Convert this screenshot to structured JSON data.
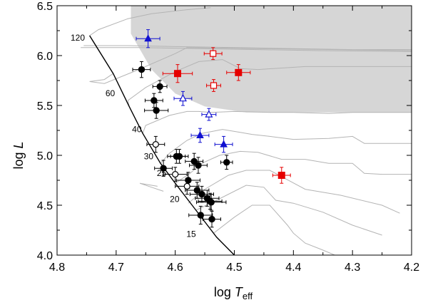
{
  "chart_data": {
    "type": "scatter",
    "title": "",
    "xlabel": {
      "main": "log ",
      "italic": "T",
      "sub": "eff"
    },
    "ylabel": {
      "main": "log ",
      "italic": "L"
    },
    "xlim": [
      4.8,
      4.2
    ],
    "ylim": [
      4.0,
      6.5
    ],
    "x_ticks": [
      4.8,
      4.7,
      4.6,
      4.5,
      4.4,
      4.3,
      4.2
    ],
    "x_tick_labels": [
      "4.8",
      "4.7",
      "4.6",
      "4.5",
      "4.4",
      "4.3",
      "4.2"
    ],
    "y_ticks": [
      4.0,
      4.5,
      5.0,
      5.5,
      6.0,
      6.5
    ],
    "y_tick_labels": [
      "4.0",
      "4.5",
      "5.0",
      "5.5",
      "6.0",
      "6.5"
    ],
    "grid": false,
    "colors": {
      "black": "#000000",
      "red": "#e60000",
      "blue": "#1010d0",
      "shade": "#d6d6d6",
      "tracks": "#b4b4b4"
    },
    "shaded_region": [
      [
        4.675,
        6.5
      ],
      [
        4.2,
        6.5
      ],
      [
        4.2,
        5.43
      ],
      [
        4.48,
        5.43
      ],
      [
        4.55,
        5.49
      ],
      [
        4.6,
        5.62
      ],
      [
        4.64,
        5.86
      ],
      [
        4.675,
        6.22
      ]
    ],
    "zams_line": [
      [
        4.745,
        6.2
      ],
      [
        4.705,
        5.82
      ],
      [
        4.678,
        5.49
      ],
      [
        4.655,
        5.22
      ],
      [
        4.625,
        4.92
      ],
      [
        4.6,
        4.72
      ],
      [
        4.565,
        4.45
      ],
      [
        4.53,
        4.18
      ],
      [
        4.5,
        4.0
      ]
    ],
    "mass_labels": [
      {
        "text": "120",
        "x": 4.765,
        "y": 6.18
      },
      {
        "text": "60",
        "x": 4.71,
        "y": 5.62
      },
      {
        "text": "40",
        "x": 4.665,
        "y": 5.26
      },
      {
        "text": "30",
        "x": 4.645,
        "y": 4.99
      },
      {
        "text": "25",
        "x": 4.623,
        "y": 4.82
      },
      {
        "text": "20",
        "x": 4.601,
        "y": 4.56
      },
      {
        "text": "15",
        "x": 4.573,
        "y": 4.21
      }
    ],
    "tracks": [
      [
        [
          4.745,
          6.2
        ],
        [
          4.73,
          6.26
        ],
        [
          4.68,
          6.37
        ],
        [
          4.64,
          6.42
        ],
        [
          4.58,
          6.46
        ],
        [
          4.54,
          6.48
        ]
      ],
      [
        [
          4.755,
          6.1
        ],
        [
          4.68,
          6.1
        ],
        [
          4.6,
          6.09
        ],
        [
          4.5,
          6.08
        ],
        [
          4.4,
          6.07
        ],
        [
          4.3,
          6.06
        ],
        [
          4.2,
          6.06
        ]
      ],
      [
        [
          4.76,
          6.08
        ],
        [
          4.66,
          6.08
        ],
        [
          4.56,
          6.07
        ],
        [
          4.46,
          6.06
        ],
        [
          4.36,
          6.05
        ],
        [
          4.2,
          6.04
        ]
      ],
      [
        [
          4.705,
          5.82
        ],
        [
          4.72,
          5.76
        ],
        [
          4.745,
          5.74
        ],
        [
          4.72,
          5.72
        ],
        [
          4.67,
          5.84
        ],
        [
          4.6,
          6.02
        ],
        [
          4.58,
          6.08
        ],
        [
          4.45,
          6.07
        ],
        [
          4.2,
          6.05
        ]
      ],
      [
        [
          4.678,
          5.49
        ],
        [
          4.68,
          5.55
        ],
        [
          4.65,
          5.68
        ],
        [
          4.6,
          5.84
        ],
        [
          4.56,
          5.94
        ],
        [
          4.52,
          5.96
        ],
        [
          4.5,
          5.9
        ],
        [
          4.49,
          5.87
        ],
        [
          4.46,
          5.86
        ],
        [
          4.38,
          5.89
        ],
        [
          4.2,
          5.89
        ]
      ],
      [
        [
          4.655,
          5.22
        ],
        [
          4.65,
          5.3
        ],
        [
          4.61,
          5.4
        ],
        [
          4.58,
          5.44
        ],
        [
          4.56,
          5.44
        ],
        [
          4.54,
          5.43
        ],
        [
          4.5,
          5.44
        ],
        [
          4.44,
          5.43
        ],
        [
          4.4,
          5.43
        ],
        [
          4.34,
          5.42
        ],
        [
          4.3,
          5.43
        ],
        [
          4.2,
          5.43
        ]
      ],
      [
        [
          4.625,
          4.92
        ],
        [
          4.61,
          5.02
        ],
        [
          4.58,
          5.15
        ],
        [
          4.555,
          5.22
        ],
        [
          4.52,
          5.26
        ],
        [
          4.49,
          5.23
        ],
        [
          4.47,
          5.21
        ],
        [
          4.44,
          5.19
        ],
        [
          4.4,
          5.16
        ],
        [
          4.34,
          5.17
        ],
        [
          4.3,
          5.19
        ],
        [
          4.28,
          5.12
        ],
        [
          4.2,
          5.12
        ]
      ],
      [
        [
          4.6,
          4.72
        ],
        [
          4.575,
          4.82
        ],
        [
          4.555,
          4.92
        ],
        [
          4.525,
          5.0
        ],
        [
          4.49,
          5.04
        ],
        [
          4.46,
          5.03
        ],
        [
          4.42,
          4.96
        ],
        [
          4.38,
          4.96
        ],
        [
          4.34,
          4.92
        ],
        [
          4.3,
          4.92
        ],
        [
          4.28,
          4.82
        ],
        [
          4.25,
          4.81
        ],
        [
          4.2,
          4.81
        ]
      ],
      [
        [
          4.578,
          4.52
        ],
        [
          4.55,
          4.66
        ],
        [
          4.51,
          4.8
        ],
        [
          4.48,
          4.85
        ],
        [
          4.44,
          4.85
        ],
        [
          4.38,
          4.66
        ],
        [
          4.32,
          4.6
        ],
        [
          4.25,
          4.5
        ],
        [
          4.22,
          4.42
        ]
      ],
      [
        [
          4.565,
          4.45
        ],
        [
          4.53,
          4.55
        ],
        [
          4.48,
          4.7
        ],
        [
          4.45,
          4.68
        ],
        [
          4.43,
          4.55
        ],
        [
          4.4,
          4.52
        ],
        [
          4.35,
          4.43
        ],
        [
          4.3,
          4.3
        ],
        [
          4.25,
          4.2
        ]
      ],
      [
        [
          4.535,
          4.22
        ],
        [
          4.5,
          4.38
        ],
        [
          4.47,
          4.5
        ],
        [
          4.44,
          4.5
        ],
        [
          4.41,
          4.3
        ],
        [
          4.4,
          4.22
        ],
        [
          4.38,
          4.12
        ],
        [
          4.35,
          4.05
        ],
        [
          4.33,
          4.0
        ]
      ],
      [
        [
          4.62,
          4.64
        ],
        [
          4.64,
          4.68
        ],
        [
          4.66,
          4.72
        ],
        [
          4.63,
          4.69
        ]
      ]
    ],
    "series": [
      {
        "marker": "filled-circle",
        "color": "#000000",
        "points": [
          {
            "x": 4.657,
            "y": 5.86,
            "xerr": 0.015,
            "yerr": 0.08
          },
          {
            "x": 4.626,
            "y": 5.69,
            "xerr": 0.012,
            "yerr": 0.06
          },
          {
            "x": 4.636,
            "y": 5.55,
            "xerr": 0.015,
            "yerr": 0.07
          },
          {
            "x": 4.632,
            "y": 5.45,
            "xerr": 0.02,
            "yerr": 0.08
          },
          {
            "x": 4.598,
            "y": 4.99,
            "xerr": 0.015,
            "yerr": 0.07
          },
          {
            "x": 4.593,
            "y": 4.99,
            "xerr": 0.015,
            "yerr": 0.07
          },
          {
            "x": 4.568,
            "y": 4.94,
            "xerr": 0.015,
            "yerr": 0.08
          },
          {
            "x": 4.561,
            "y": 4.9,
            "xerr": 0.015,
            "yerr": 0.08
          },
          {
            "x": 4.513,
            "y": 4.93,
            "xerr": 0.01,
            "yerr": 0.07
          },
          {
            "x": 4.62,
            "y": 4.87,
            "xerr": 0.015,
            "yerr": 0.08
          },
          {
            "x": 4.578,
            "y": 4.75,
            "xerr": 0.02,
            "yerr": 0.08
          },
          {
            "x": 4.563,
            "y": 4.65,
            "xerr": 0.02,
            "yerr": 0.08
          },
          {
            "x": 4.555,
            "y": 4.61,
            "xerr": 0.02,
            "yerr": 0.08
          },
          {
            "x": 4.546,
            "y": 4.57,
            "xerr": 0.02,
            "yerr": 0.08
          },
          {
            "x": 4.541,
            "y": 4.54,
            "xerr": 0.02,
            "yerr": 0.08
          },
          {
            "x": 4.539,
            "y": 4.53,
            "xerr": 0.025,
            "yerr": 0.08
          },
          {
            "x": 4.557,
            "y": 4.4,
            "xerr": 0.02,
            "yerr": 0.09
          },
          {
            "x": 4.538,
            "y": 4.36,
            "xerr": 0.015,
            "yerr": 0.08
          }
        ]
      },
      {
        "marker": "open-circle",
        "color": "#000000",
        "points": [
          {
            "x": 4.633,
            "y": 5.11,
            "xerr": 0.015,
            "yerr": 0.08
          },
          {
            "x": 4.6,
            "y": 4.81,
            "xerr": 0.02,
            "yerr": 0.07
          },
          {
            "x": 4.58,
            "y": 4.69,
            "xerr": 0.02,
            "yerr": 0.08
          }
        ]
      },
      {
        "marker": "filled-square",
        "color": "#e60000",
        "points": [
          {
            "x": 4.596,
            "y": 5.82,
            "xerr": 0.025,
            "yerr": 0.09
          },
          {
            "x": 4.493,
            "y": 5.83,
            "xerr": 0.02,
            "yerr": 0.08
          },
          {
            "x": 4.42,
            "y": 4.8,
            "xerr": 0.015,
            "yerr": 0.08
          }
        ]
      },
      {
        "marker": "open-square",
        "color": "#e60000",
        "points": [
          {
            "x": 4.536,
            "y": 6.02,
            "xerr": 0.015,
            "yerr": 0.06
          },
          {
            "x": 4.535,
            "y": 5.7,
            "xerr": 0.012,
            "yerr": 0.06
          }
        ]
      },
      {
        "marker": "filled-triangle",
        "color": "#1010d0",
        "points": [
          {
            "x": 4.646,
            "y": 6.17,
            "xerr": 0.02,
            "yerr": 0.09
          },
          {
            "x": 4.558,
            "y": 5.2,
            "xerr": 0.015,
            "yerr": 0.07
          },
          {
            "x": 4.518,
            "y": 5.11,
            "xerr": 0.015,
            "yerr": 0.08
          }
        ]
      },
      {
        "marker": "open-triangle",
        "color": "#1010d0",
        "points": [
          {
            "x": 4.587,
            "y": 5.57,
            "xerr": 0.015,
            "yerr": 0.07
          },
          {
            "x": 4.543,
            "y": 5.41,
            "xerr": 0.012,
            "yerr": 0.06
          }
        ]
      }
    ]
  }
}
